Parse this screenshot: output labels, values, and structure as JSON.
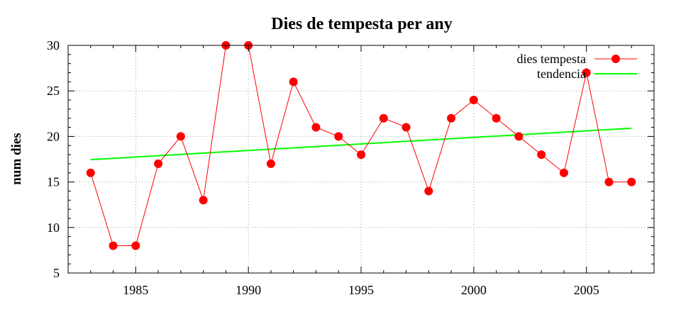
{
  "chart_data": {
    "type": "line",
    "title": "Dies de tempesta per any",
    "xlabel": "",
    "ylabel": "num dies",
    "xlim": [
      1982,
      2008
    ],
    "ylim": [
      5,
      30
    ],
    "x_ticks": [
      "1985",
      "1990",
      "1995",
      "2000",
      "2005"
    ],
    "y_ticks": [
      "5",
      "10",
      "15",
      "20",
      "25",
      "30"
    ],
    "grid": true,
    "legend_position": "top-right",
    "series": [
      {
        "name": "dies tempesta",
        "color": "#ff0000",
        "marker": "circle",
        "x": [
          1983,
          1984,
          1985,
          1986,
          1987,
          1988,
          1989,
          1990,
          1991,
          1992,
          1993,
          1994,
          1995,
          1996,
          1997,
          1998,
          1999,
          2000,
          2001,
          2002,
          2003,
          2004,
          2005,
          2006,
          2007
        ],
        "y": [
          16,
          8,
          8,
          17,
          20,
          13,
          30,
          30,
          17,
          26,
          21,
          20,
          18,
          22,
          21,
          14,
          22,
          24,
          22,
          20,
          18,
          16,
          27,
          15,
          15
        ]
      },
      {
        "name": "tendencia",
        "color": "#00ff00",
        "marker": "none",
        "x": [
          1983,
          2007
        ],
        "y": [
          17.45,
          20.9
        ]
      }
    ]
  }
}
